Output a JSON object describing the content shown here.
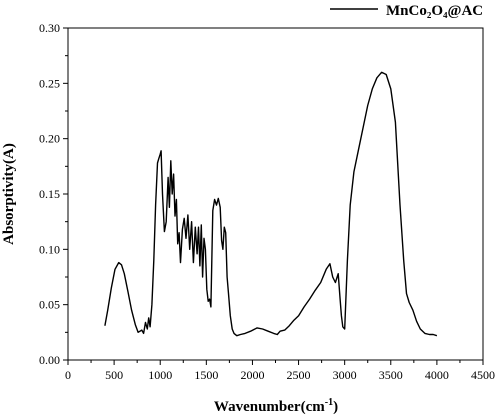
{
  "chart_data": {
    "type": "line",
    "title": "",
    "xlabel": "Wavenumber(cm",
    "xlabel_sup": "-1",
    "xlabel_suffix": ")",
    "ylabel": "Absorptivity(A)",
    "xlim": [
      0,
      4500
    ],
    "ylim": [
      0.0,
      0.3
    ],
    "x_ticks": [
      0,
      500,
      1000,
      1500,
      2000,
      2500,
      3000,
      3500,
      4000,
      4500
    ],
    "y_ticks": [
      0.0,
      0.05,
      0.1,
      0.15,
      0.2,
      0.25,
      0.3
    ],
    "y_tick_labels": [
      "0.00",
      "0.05",
      "0.10",
      "0.15",
      "0.20",
      "0.25",
      "0.30"
    ],
    "legend": {
      "position": "top-right"
    },
    "series": [
      {
        "name": "MnCo₂O₄@AC",
        "color": "#000000",
        "x": [
          400,
          430,
          470,
          510,
          550,
          580,
          610,
          650,
          690,
          730,
          760,
          800,
          820,
          840,
          860,
          875,
          890,
          910,
          930,
          950,
          970,
          985,
          1000,
          1010,
          1025,
          1045,
          1065,
          1085,
          1100,
          1115,
          1130,
          1145,
          1160,
          1175,
          1190,
          1205,
          1220,
          1240,
          1260,
          1280,
          1300,
          1320,
          1340,
          1360,
          1380,
          1400,
          1415,
          1430,
          1445,
          1460,
          1475,
          1490,
          1505,
          1520,
          1535,
          1550,
          1570,
          1590,
          1610,
          1630,
          1650,
          1665,
          1680,
          1695,
          1710,
          1725,
          1740,
          1760,
          1780,
          1800,
          1830,
          1870,
          1920,
          1980,
          2050,
          2110,
          2170,
          2230,
          2270,
          2300,
          2350,
          2400,
          2450,
          2500,
          2560,
          2620,
          2680,
          2740,
          2800,
          2840,
          2870,
          2900,
          2930,
          2950,
          2965,
          2980,
          3000,
          3030,
          3060,
          3100,
          3150,
          3200,
          3250,
          3300,
          3350,
          3400,
          3450,
          3500,
          3550,
          3600,
          3640,
          3670,
          3700,
          3740,
          3780,
          3820,
          3870,
          3920,
          3960,
          4000
        ],
        "y": [
          0.031,
          0.045,
          0.065,
          0.082,
          0.088,
          0.086,
          0.078,
          0.062,
          0.045,
          0.032,
          0.025,
          0.027,
          0.024,
          0.034,
          0.028,
          0.038,
          0.03,
          0.05,
          0.09,
          0.14,
          0.178,
          0.182,
          0.186,
          0.189,
          0.15,
          0.116,
          0.125,
          0.165,
          0.138,
          0.18,
          0.15,
          0.168,
          0.13,
          0.145,
          0.105,
          0.115,
          0.088,
          0.118,
          0.128,
          0.11,
          0.131,
          0.1,
          0.125,
          0.088,
          0.12,
          0.096,
          0.12,
          0.085,
          0.122,
          0.075,
          0.11,
          0.1,
          0.064,
          0.053,
          0.055,
          0.048,
          0.135,
          0.145,
          0.14,
          0.146,
          0.138,
          0.108,
          0.1,
          0.12,
          0.115,
          0.075,
          0.06,
          0.04,
          0.028,
          0.024,
          0.022,
          0.023,
          0.024,
          0.026,
          0.029,
          0.028,
          0.026,
          0.024,
          0.023,
          0.026,
          0.027,
          0.031,
          0.036,
          0.04,
          0.048,
          0.055,
          0.063,
          0.07,
          0.082,
          0.087,
          0.075,
          0.07,
          0.078,
          0.055,
          0.04,
          0.03,
          0.028,
          0.09,
          0.14,
          0.17,
          0.19,
          0.21,
          0.23,
          0.245,
          0.255,
          0.26,
          0.258,
          0.245,
          0.215,
          0.14,
          0.09,
          0.06,
          0.052,
          0.045,
          0.035,
          0.028,
          0.024,
          0.023,
          0.023,
          0.022
        ]
      }
    ]
  }
}
